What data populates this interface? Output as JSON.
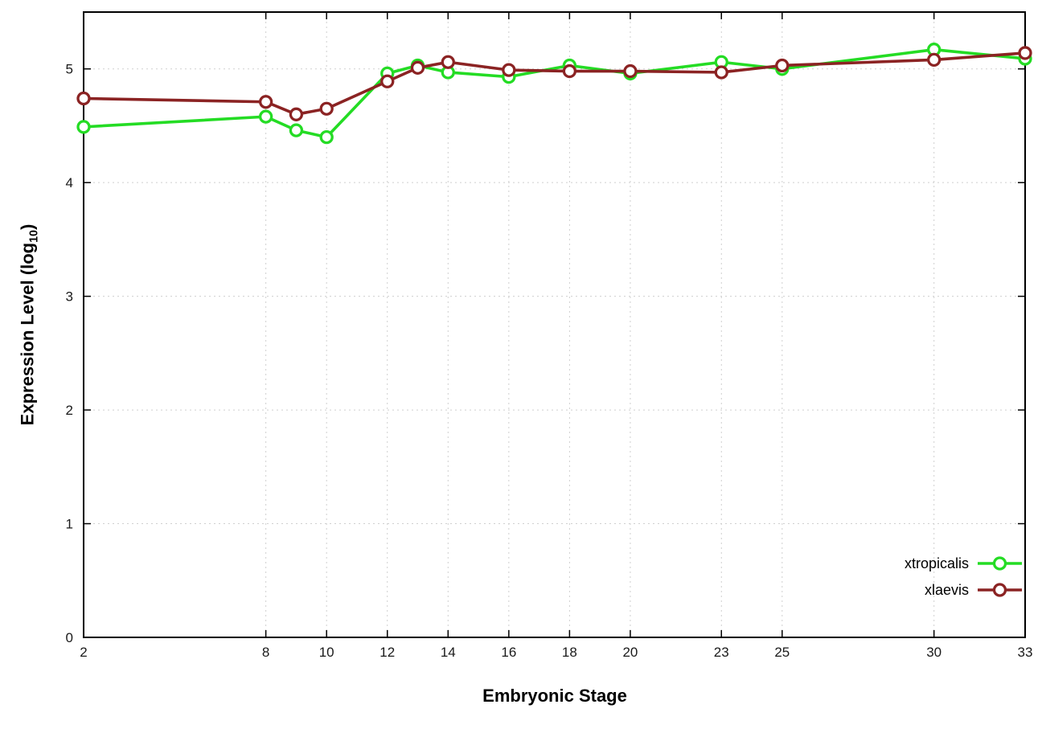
{
  "figure": {
    "background": "#ffffff"
  },
  "chart_data": {
    "type": "line",
    "title": "",
    "xlabel": "Embryonic Stage",
    "ylabel": "Expression Level (log10)",
    "ylabel_parts": {
      "prefix": "Expression Level (log",
      "sub": "10",
      "suffix": ")"
    },
    "x": [
      2,
      8,
      9,
      10,
      12,
      13,
      14,
      16,
      18,
      20,
      23,
      25,
      30,
      33
    ],
    "series": [
      {
        "name": "xtropicalis",
        "color": "#24dc24",
        "values": [
          4.49,
          4.58,
          4.46,
          4.4,
          4.96,
          5.03,
          4.97,
          4.93,
          5.03,
          4.96,
          5.06,
          5.0,
          5.17,
          5.09
        ]
      },
      {
        "name": "xlaevis",
        "color": "#8b2323",
        "values": [
          4.74,
          4.71,
          4.6,
          4.65,
          4.89,
          5.01,
          5.06,
          4.99,
          4.98,
          4.98,
          4.97,
          5.03,
          5.08,
          5.14
        ]
      }
    ],
    "xticks": [
      2,
      8,
      10,
      12,
      14,
      16,
      18,
      20,
      23,
      25,
      30,
      33
    ],
    "yticks": [
      0,
      1,
      2,
      3,
      4,
      5
    ],
    "xlim": [
      2,
      33
    ],
    "ylim": [
      0,
      5.5
    ],
    "grid": true,
    "grid_style": "dotted",
    "grid_color": "#cfcfcf",
    "frame_color": "#000000",
    "marker": "open-circle",
    "legend": {
      "position": "bottom-right"
    }
  }
}
